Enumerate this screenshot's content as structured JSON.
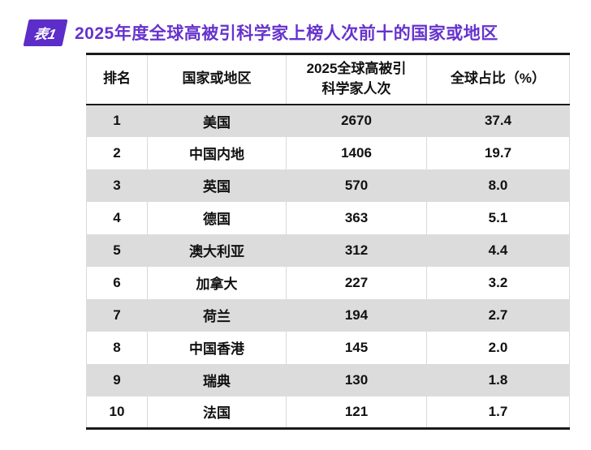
{
  "colors": {
    "accent_purple": "#6633cc",
    "badge_purple": "#5c2dc8",
    "stripe_gray": "#dcdcdc",
    "grid_gray": "#d9d9d9",
    "border_dark": "#1a1a1a"
  },
  "header": {
    "badge_label": "表1",
    "title": "2025年度全球高被引科学家上榜人次前十的国家或地区"
  },
  "chart_data": {
    "type": "table",
    "table_number": "表1",
    "title": "2025年度全球高被引科学家上榜人次前十的国家或地区",
    "columns": [
      "排名",
      "国家或地区",
      "2025全球高被引科学家人次",
      "全球占比（%）"
    ],
    "column_display": {
      "rank": "排名",
      "country": "国家或地区",
      "count_line1": "2025全球高被引",
      "count_line2": "科学家人次",
      "share": "全球占比（%）"
    },
    "rows": [
      {
        "rank": "1",
        "country": "美国",
        "count": "2670",
        "share": "37.4"
      },
      {
        "rank": "2",
        "country": "中国内地",
        "count": "1406",
        "share": "19.7"
      },
      {
        "rank": "3",
        "country": "英国",
        "count": "570",
        "share": "8.0"
      },
      {
        "rank": "4",
        "country": "德国",
        "count": "363",
        "share": "5.1"
      },
      {
        "rank": "5",
        "country": "澳大利亚",
        "count": "312",
        "share": "4.4"
      },
      {
        "rank": "6",
        "country": "加拿大",
        "count": "227",
        "share": "3.2"
      },
      {
        "rank": "7",
        "country": "荷兰",
        "count": "194",
        "share": "2.7"
      },
      {
        "rank": "8",
        "country": "中国香港",
        "count": "145",
        "share": "2.0"
      },
      {
        "rank": "9",
        "country": "瑞典",
        "count": "130",
        "share": "1.8"
      },
      {
        "rank": "10",
        "country": "法国",
        "count": "121",
        "share": "1.7"
      }
    ]
  }
}
